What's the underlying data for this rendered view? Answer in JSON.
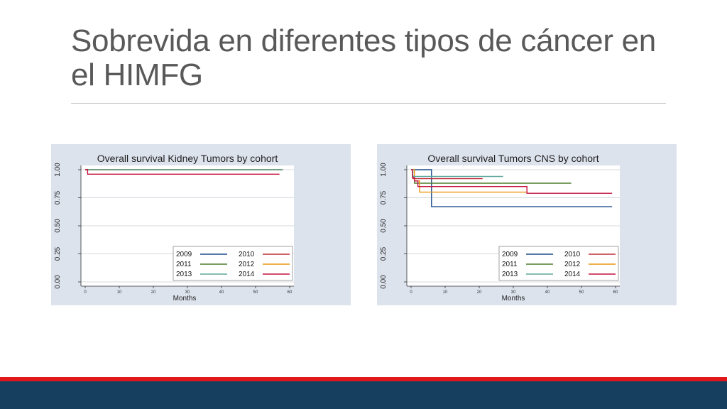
{
  "slide": {
    "title": "Sobrevida en diferentes tipos de cáncer en el HIMFG"
  },
  "colors": {
    "panel_bg": "#dde3ed",
    "plot_bg": "#ffffff",
    "footer_red": "#e0181c",
    "footer_blue": "#163e5f"
  },
  "chart_data": [
    {
      "type": "line",
      "title": "Overall survival Kidney Tumors by cohort",
      "xlabel": "Months",
      "ylabel": "",
      "xlim": [
        0,
        60
      ],
      "ylim": [
        0,
        1
      ],
      "xticks": [
        "0",
        "10",
        "20",
        "30",
        "40",
        "50",
        "60"
      ],
      "yticks": [
        "0.00",
        "0.25",
        "0.50",
        "0.75",
        "1.00"
      ],
      "grid": true,
      "legend_position": "bottom-right",
      "series": [
        {
          "name": "2009",
          "color": "#1a4a8a",
          "steps": [
            [
              0,
              1.0
            ],
            [
              58,
              1.0
            ]
          ]
        },
        {
          "name": "2010",
          "color": "#c0303d",
          "steps": [
            [
              0,
              1.0
            ],
            [
              9,
              1.0
            ]
          ]
        },
        {
          "name": "2011",
          "color": "#4e7d2e",
          "steps": [
            [
              0,
              1.0
            ],
            [
              58,
              1.0
            ]
          ]
        },
        {
          "name": "2012",
          "color": "#e8960f",
          "steps": [
            [
              0,
              1.0
            ],
            [
              58,
              1.0
            ]
          ]
        },
        {
          "name": "2013",
          "color": "#5da79c",
          "steps": [
            [
              0,
              1.0
            ],
            [
              58,
              1.0
            ]
          ]
        },
        {
          "name": "2014",
          "color": "#c4113f",
          "steps": [
            [
              0,
              1.0
            ],
            [
              0.7,
              1.0
            ],
            [
              0.7,
              0.96
            ],
            [
              57,
              0.96
            ]
          ]
        }
      ],
      "legend": [
        {
          "label": "2009",
          "series": 0
        },
        {
          "label": "2010",
          "series": 1
        },
        {
          "label": "2011",
          "series": 2
        },
        {
          "label": "2012",
          "series": 3
        },
        {
          "label": "2013",
          "series": 4
        },
        {
          "label": "2014",
          "series": 5
        }
      ]
    },
    {
      "type": "line",
      "title": "Overall survival Tumors CNS by cohort",
      "xlabel": "Months",
      "ylabel": "",
      "xlim": [
        0,
        60
      ],
      "ylim": [
        0,
        1
      ],
      "xticks": [
        "0",
        "10",
        "20",
        "30",
        "40",
        "50",
        "60"
      ],
      "yticks": [
        "0.00",
        "0.25",
        "0.50",
        "0.75",
        "1.00"
      ],
      "grid": true,
      "legend_position": "bottom-right",
      "series": [
        {
          "name": "2009",
          "color": "#1a4a8a",
          "steps": [
            [
              0,
              1.0
            ],
            [
              6,
              1.0
            ],
            [
              6,
              0.67
            ],
            [
              59,
              0.67
            ]
          ]
        },
        {
          "name": "2010",
          "color": "#c0303d",
          "steps": [
            [
              0,
              1.0
            ],
            [
              0.5,
              1.0
            ],
            [
              0.5,
              0.92
            ],
            [
              21,
              0.92
            ]
          ]
        },
        {
          "name": "2011",
          "color": "#4e7d2e",
          "steps": [
            [
              0,
              1.0
            ],
            [
              0.5,
              1.0
            ],
            [
              0.5,
              0.94
            ],
            [
              1,
              0.94
            ],
            [
              1,
              0.88
            ],
            [
              47,
              0.88
            ]
          ]
        },
        {
          "name": "2012",
          "color": "#e8960f",
          "steps": [
            [
              0,
              1.0
            ],
            [
              1,
              1.0
            ],
            [
              1,
              0.9
            ],
            [
              2.5,
              0.9
            ],
            [
              2.5,
              0.8
            ],
            [
              34,
              0.8
            ]
          ]
        },
        {
          "name": "2013",
          "color": "#5da79c",
          "steps": [
            [
              0,
              1.0
            ],
            [
              0.5,
              1.0
            ],
            [
              0.5,
              0.94
            ],
            [
              27,
              0.94
            ]
          ]
        },
        {
          "name": "2014",
          "color": "#c4113f",
          "steps": [
            [
              0,
              1.0
            ],
            [
              0.4,
              1.0
            ],
            [
              0.4,
              0.93
            ],
            [
              1,
              0.93
            ],
            [
              1,
              0.9
            ],
            [
              2,
              0.9
            ],
            [
              2,
              0.85
            ],
            [
              34,
              0.85
            ],
            [
              34,
              0.79
            ],
            [
              59,
              0.79
            ]
          ]
        }
      ],
      "legend": [
        {
          "label": "2009",
          "series": 0
        },
        {
          "label": "2010",
          "series": 1
        },
        {
          "label": "2011",
          "series": 2
        },
        {
          "label": "2012",
          "series": 3
        },
        {
          "label": "2013",
          "series": 4
        },
        {
          "label": "2014",
          "series": 5
        }
      ]
    }
  ]
}
